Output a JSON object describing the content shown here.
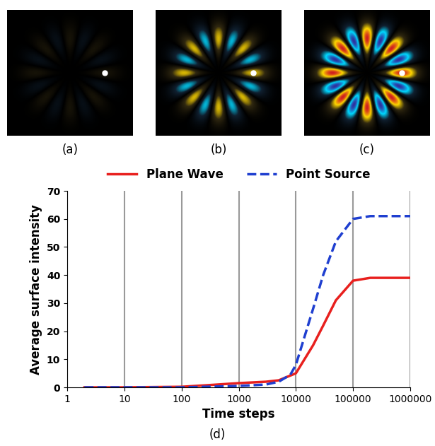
{
  "panels": [
    "(a)",
    "(b)",
    "(c)"
  ],
  "chart_data": {
    "type": "line",
    "title": "(d)",
    "x_label": "Time steps",
    "y_label": "Average surface intensity",
    "log": "x",
    "grid": "x",
    "legend": "upper center",
    "xlim": [
      1,
      1000000
    ],
    "xticks": [
      1,
      10,
      100,
      1000,
      10000,
      100000,
      1000000
    ],
    "ylim": [
      0,
      70
    ],
    "yticks": [
      0,
      10,
      20,
      30,
      40,
      50,
      60,
      70
    ],
    "series": [
      {
        "name": "Plane Wave",
        "color": "#e8201e",
        "line_style": "solid",
        "x": [
          2,
          10,
          100,
          300,
          1000,
          3000,
          5000,
          10000,
          20000,
          30000,
          50000,
          100000,
          200000,
          1000000
        ],
        "values": [
          0,
          0,
          0.2,
          0.8,
          1.5,
          2,
          2.5,
          5,
          15,
          22,
          31,
          38,
          39,
          39
        ]
      },
      {
        "name": "Point Source",
        "color": "#1f3fd0",
        "line_style": "dashed",
        "x": [
          2,
          100,
          1000,
          3000,
          5000,
          8000,
          10000,
          20000,
          30000,
          50000,
          100000,
          200000,
          1000000
        ],
        "values": [
          0,
          0,
          0.5,
          1,
          2,
          4.5,
          8,
          28,
          40,
          52,
          60,
          61,
          61
        ]
      }
    ]
  }
}
